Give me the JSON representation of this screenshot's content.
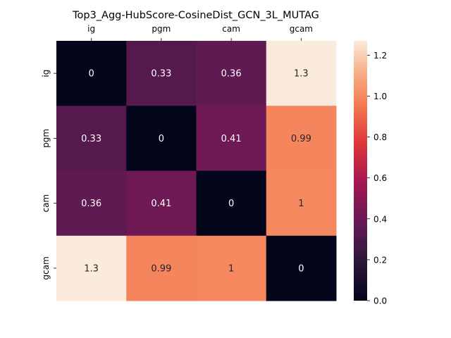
{
  "chart_data": {
    "type": "heatmap",
    "title": "Top3_Agg-HubScore-CosineDist_GCN_3L_MUTAG",
    "x_categories": [
      "ig",
      "pgm",
      "cam",
      "gcam"
    ],
    "y_categories": [
      "ig",
      "pgm",
      "cam",
      "gcam"
    ],
    "values": [
      [
        0,
        0.33,
        0.36,
        1.27
      ],
      [
        0.33,
        0,
        0.41,
        0.99
      ],
      [
        0.36,
        0.41,
        0,
        1.0
      ],
      [
        1.27,
        0.99,
        1.0,
        0
      ]
    ],
    "annotations": [
      [
        "0",
        "0.33",
        "0.36",
        "1.3"
      ],
      [
        "0.33",
        "0",
        "0.41",
        "0.99"
      ],
      [
        "0.36",
        "0.41",
        "0",
        "1"
      ],
      [
        "1.3",
        "0.99",
        "1",
        "0"
      ]
    ],
    "colorbar": {
      "vmin": 0,
      "vmax": 1.27,
      "ticks": [
        "0.0",
        "0.2",
        "0.4",
        "0.6",
        "0.8",
        "1.0",
        "1.2"
      ],
      "tick_values": [
        0,
        0.2,
        0.4,
        0.6,
        0.8,
        1.0,
        1.2
      ]
    },
    "xaxis_position": "top",
    "colormap": "rocket",
    "xlabel": "",
    "ylabel": ""
  }
}
